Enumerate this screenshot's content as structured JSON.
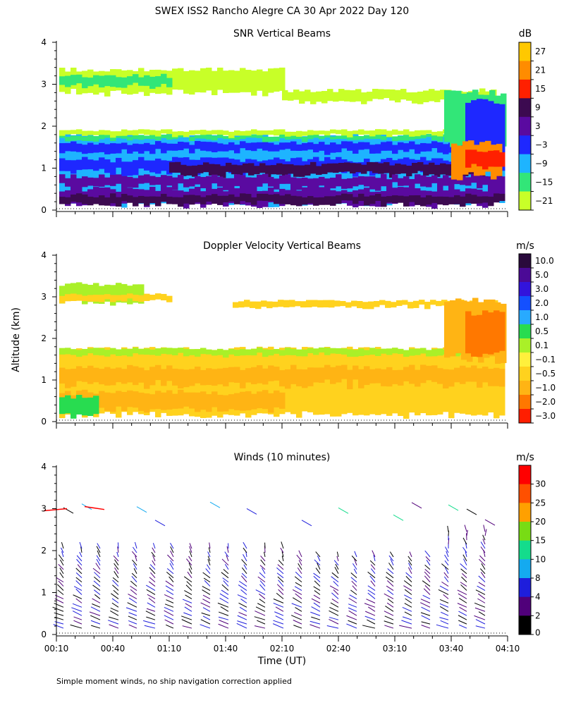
{
  "figure": {
    "title": "SWEX ISS2 Rancho Alegre CA  30 Apr 2022 Day 120",
    "footnote": "Simple moment winds, no ship navigation correction applied",
    "ylabel": "Altitude (km)",
    "xlabel": "Time (UT)"
  },
  "chart_data": [
    {
      "type": "heatmap",
      "title": "SNR Vertical Beams",
      "unit": "dB",
      "ylim": [
        0,
        4
      ],
      "yticks": [
        "0",
        "1",
        "2",
        "3",
        "4"
      ],
      "colorbar_labels": [
        "27",
        "21",
        "15",
        "9",
        "3",
        "−3",
        "−9",
        "−15",
        "−21"
      ],
      "colorbar_colors": [
        "#ffc800",
        "#ff8c00",
        "#ff2000",
        "#3c0a50",
        "#5a0aa0",
        "#1e28ff",
        "#1eb4ff",
        "#32e678",
        "#c8ff28"
      ]
    },
    {
      "type": "heatmap",
      "title": "Doppler Velocity Vertical Beams",
      "unit": "m/s",
      "ylim": [
        0,
        4
      ],
      "yticks": [
        "0",
        "1",
        "2",
        "3",
        "4"
      ],
      "colorbar_labels": [
        "10.0",
        "5.0",
        "3.0",
        "2.0",
        "1.0",
        "0.5",
        "0.1",
        "−0.1",
        "−0.5",
        "−1.0",
        "−2.0",
        "−3.0"
      ],
      "colorbar_colors": [
        "#2a0a3c",
        "#4b0a96",
        "#3214dc",
        "#1450ff",
        "#28aaff",
        "#28dc50",
        "#aaf028",
        "#fff03c",
        "#ffd21e",
        "#ffb414",
        "#ff7800",
        "#ff1e00"
      ]
    },
    {
      "type": "scatter",
      "title": "Winds (10 minutes)",
      "unit": "m/s",
      "ylim": [
        0,
        4
      ],
      "yticks": [
        "0",
        "1",
        "2",
        "3",
        "4"
      ],
      "xlim": [
        "00:10",
        "04:10"
      ],
      "xticks": [
        "00:10",
        "00:40",
        "01:10",
        "01:40",
        "02:10",
        "02:40",
        "03:10",
        "03:40",
        "04:10"
      ],
      "colorbar_labels": [
        "30",
        "25",
        "20",
        "15",
        "10",
        "8",
        "4",
        "2",
        "0"
      ],
      "colorbar_colors": [
        "#ff0000",
        "#ff5000",
        "#ffa000",
        "#78dc14",
        "#14dc8c",
        "#14aaf0",
        "#1e1edc",
        "#50007a",
        "#000000"
      ]
    }
  ]
}
